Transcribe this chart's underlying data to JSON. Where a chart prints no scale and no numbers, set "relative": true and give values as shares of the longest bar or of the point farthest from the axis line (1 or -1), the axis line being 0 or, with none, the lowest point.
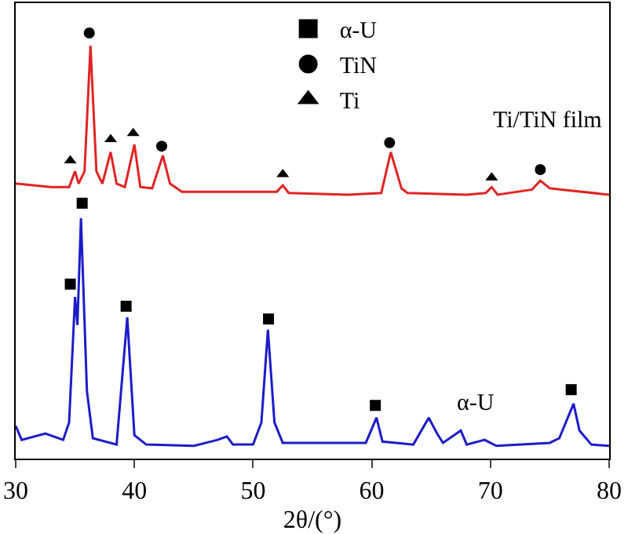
{
  "chart_data": {
    "type": "line",
    "relative": true,
    "xlabel": "2θ/(°)",
    "xlim": [
      30,
      80
    ],
    "xticks": [
      30,
      40,
      50,
      60,
      70,
      80
    ],
    "legend": "top right",
    "series": [
      {
        "marker": "none",
        "color": "#e02424",
        "x": [
          30,
          33,
          34.5,
          35.0,
          35.3,
          35.8,
          36.3,
          36.8,
          37.3,
          38.0,
          38.5,
          39.2,
          40.0,
          40.5,
          41.5,
          42.4,
          43.0,
          44,
          48,
          52.0,
          52.5,
          53,
          58,
          60.8,
          61.6,
          62.5,
          63,
          68,
          69.6,
          70.1,
          70.6,
          73.5,
          74.2,
          75,
          76,
          80
        ],
        "values": [
          0.646,
          0.638,
          0.638,
          0.675,
          0.646,
          0.675,
          0.97,
          0.675,
          0.646,
          0.72,
          0.646,
          0.638,
          0.738,
          0.638,
          0.635,
          0.712,
          0.646,
          0.627,
          0.627,
          0.627,
          0.642,
          0.624,
          0.62,
          0.624,
          0.72,
          0.635,
          0.624,
          0.62,
          0.624,
          0.638,
          0.62,
          0.632,
          0.653,
          0.635,
          0.632,
          0.62
        ]
      },
      {
        "marker": "none",
        "color": "#1c1cc8",
        "x": [
          30,
          30.5,
          32.5,
          34,
          34.5,
          35.0,
          35.2,
          35.5,
          36.0,
          36.5,
          38.5,
          39.4,
          40.0,
          41,
          45,
          47,
          47.8,
          48.3,
          50,
          50.7,
          51.25,
          51.8,
          52.5,
          55,
          59.5,
          60.4,
          60.9,
          63.5,
          64.8,
          65.5,
          66,
          67.5,
          68,
          69.5,
          70.5,
          75,
          75.8,
          77.0,
          77.5,
          78.5,
          80
        ],
        "values": [
          0.077,
          0.044,
          0.059,
          0.044,
          0.085,
          0.38,
          0.314,
          0.565,
          0.159,
          0.048,
          0.033,
          0.332,
          0.055,
          0.033,
          0.03,
          0.044,
          0.052,
          0.033,
          0.033,
          0.085,
          0.303,
          0.085,
          0.037,
          0.037,
          0.037,
          0.096,
          0.04,
          0.033,
          0.096,
          0.059,
          0.037,
          0.066,
          0.033,
          0.044,
          0.03,
          0.037,
          0.048,
          0.129,
          0.066,
          0.033,
          0.03
        ]
      },
      {
        "type": "scatter",
        "name": "α-U",
        "marker": "square",
        "color": "#000000",
        "x": [
          34.6,
          35.6,
          39.3,
          51.3,
          60.3,
          76.8
        ],
        "values": [
          0.41,
          0.6,
          0.358,
          0.328,
          0.125,
          0.162
        ]
      },
      {
        "type": "scatter",
        "name": "TiN",
        "marker": "circle",
        "color": "#000000",
        "x": [
          36.2,
          42.3,
          61.5,
          74.2
        ],
        "values": [
          1.0,
          0.734,
          0.742,
          0.679
        ]
      },
      {
        "type": "scatter",
        "name": "Ti",
        "marker": "triangle",
        "color": "#000000",
        "x": [
          34.6,
          38.0,
          39.9,
          52.5,
          70.1
        ],
        "values": [
          0.7,
          0.75,
          0.764,
          0.668,
          0.66
        ]
      }
    ],
    "annotations": [
      "Ti/TiN film",
      "α-U"
    ]
  }
}
